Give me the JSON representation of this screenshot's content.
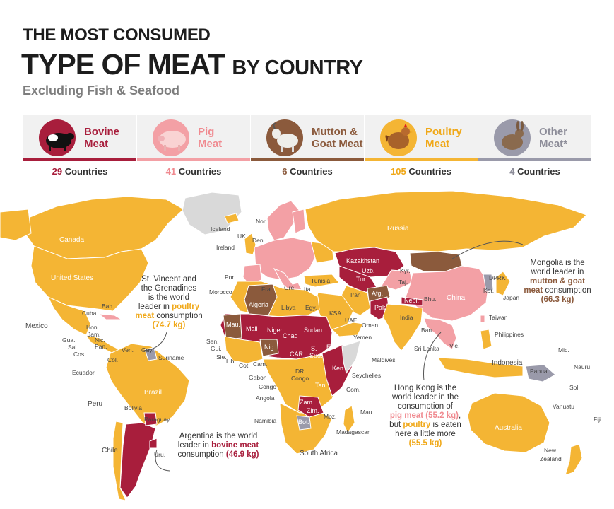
{
  "title_line1": "THE MOST CONSUMED",
  "title_line2_main": "TYPE OF MEAT",
  "title_line2_small": "BY COUNTRY",
  "subtitle": "Excluding Fish & Seafood",
  "colors": {
    "bovine": "#a81e3c",
    "pig": "#f3a0a5",
    "mutton": "#8b5a3c",
    "poultry": "#f4b534",
    "other": "#9a9aaa",
    "no_data": "#d9d9d9"
  },
  "categories": [
    {
      "key": "bovine",
      "line1": "Bovine",
      "line2": "Meat",
      "count_num": "29",
      "count_word": "Countries",
      "icon": "cow-icon"
    },
    {
      "key": "pig",
      "line1": "Pig",
      "line2": "Meat",
      "count_num": "41",
      "count_word": "Countries",
      "icon": "pig-icon"
    },
    {
      "key": "mutton",
      "line1": "Mutton &",
      "line2": "Goat Meat",
      "count_num": "6",
      "count_word": "Countries",
      "icon": "goat-icon"
    },
    {
      "key": "poultry",
      "line1": "Poultry",
      "line2": "Meat",
      "count_num": "105",
      "count_word": "Countries",
      "icon": "chicken-icon"
    },
    {
      "key": "other",
      "line1": "Other",
      "line2": "Meat*",
      "count_num": "4",
      "count_word": "Countries",
      "icon": "rabbit-icon"
    }
  ],
  "annotations": {
    "svg": {
      "l1": "St. Vincent and",
      "l2": "the Grenadines",
      "l3": "is the world",
      "l4a": "leader in ",
      "l4b": "poultry",
      "l5a": "meat",
      "l5b": " consumption",
      "l6": "(74.7 kg)"
    },
    "mongolia": {
      "l1": "Mongolia is the",
      "l2": "world leader in",
      "l3": "mutton & goat",
      "l4a": "meat",
      "l4b": " consumption",
      "l5": "(66.3 kg)"
    },
    "hongkong": {
      "l1": "Hong Kong is the",
      "l2": "world leader in the",
      "l3": "consumption of",
      "l4a": "pig meat (55.2 kg)",
      "l4b": ",",
      "l5a": "but ",
      "l5b": "poultry",
      "l5c": " is eaten",
      "l6": "here a little more",
      "l7": "(55.5 kg)"
    },
    "argentina": {
      "l1": "Argentina is the world",
      "l2a": "leader in ",
      "l2b": "bovine meat",
      "l3a": "consumption ",
      "l3b": "(46.9 kg)"
    }
  },
  "country_labels": {
    "iceland": "Iceland",
    "nor": "Nor.",
    "uk": "UK",
    "den": "Den.",
    "ireland": "Ireland",
    "por": "Por.",
    "morocco": "Morocco",
    "tunisia": "Tunisia",
    "gre": "Gre.",
    "ita": "Ita.",
    "fra": "Fra.",
    "russia": "Russia",
    "kazakhstan": "Kazakhstan",
    "uzb": "Uzb.",
    "tur": "Tur.",
    "kyr": "Kyr.",
    "taj": "Taj.",
    "afg": "Afg.",
    "pak": "Pak",
    "iran": "Iran",
    "nepl": "Nepl.",
    "bhu": "Bhu.",
    "china": "China",
    "india": "India",
    "ksa": "KSA",
    "egy": "Egy.",
    "uae": "UAE",
    "oman": "Oman",
    "yemen": "Yemen",
    "libya": "Libya",
    "algeria": "Algeria",
    "mau": "Mau.",
    "mali": "Mali",
    "niger": "Niger",
    "chad": "Chad",
    "sudan": "Sudan",
    "ssud1": "S.",
    "ssud2": "Sud.",
    "eth": "Eth.",
    "car": "CAR",
    "nig": "Nig.",
    "ken": "Ken.",
    "tan": "Tan.",
    "dr_congo1": "DR",
    "dr_congo2": "Congo",
    "congo": "Congo",
    "gabon": "Gabon",
    "cam": "Cam.",
    "angola": "Angola",
    "namibia": "Namibia",
    "bot": "Bot.",
    "zim": "Zim.",
    "zam": "Zam.",
    "moz": "Moz.",
    "south_africa": "South Africa",
    "madagascar": "Madagascar",
    "com": "Com.",
    "mau_isl": "Mau.",
    "seychelles": "Seychelles",
    "maldives": "Maldives",
    "sri_lanka": "Sri Lanka",
    "ban": "Ban.",
    "vie": "Vie.",
    "taiwan": "Taiwan",
    "philippines": "Philippines",
    "indonesia": "Indonesia",
    "dprk": "DPRK",
    "kor": "Kor.",
    "japan": "Japan",
    "mic": "Mic.",
    "nauru": "Nauru",
    "papua": "Papua.",
    "sol": "Sol.",
    "vanuatu": "Vanuatu",
    "fiji": "Fiji",
    "australia": "Australia",
    "new_zealand1": "New",
    "new_zealand2": "Zealand",
    "canada": "Canada",
    "united_states": "United States",
    "mexico": "Mexico",
    "cuba": "Cuba",
    "bah": "Bah.",
    "hon": "Hon.",
    "jam": "Jam.",
    "nic": "Nic.",
    "pan": "Pan.",
    "gua": "Gua.",
    "sal": "Sal.",
    "cos": "Cos.",
    "ven": "Ven.",
    "guy": "Guy.",
    "suriname": "Suriname",
    "col": "Col.",
    "ecuador": "Ecuador",
    "peru": "Peru",
    "brazil": "Brazil",
    "bolivia": "Bolivia",
    "paraguay": "Paraguay",
    "chile": "Chile",
    "uru": "Uru.",
    "sen": "Sen.",
    "gui": "Gui.",
    "sie": "Sie.",
    "lib": "Lib.",
    "cot": "Cot."
  }
}
